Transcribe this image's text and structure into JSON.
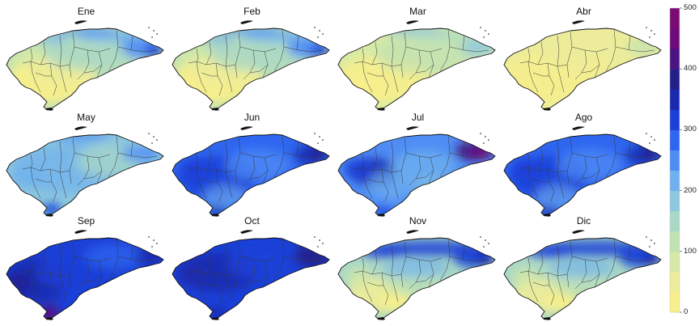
{
  "colorbar": {
    "ticks": [
      "500",
      "400",
      "300",
      "200",
      "100",
      "0"
    ],
    "range": [
      0,
      500
    ],
    "stops": [
      "#f7ef8c",
      "#ecec9a",
      "#d6e9a6",
      "#bfe1b3",
      "#a9d8c6",
      "#8cc8de",
      "#6fb1ee",
      "#4f8df5",
      "#2f66f0",
      "#1b40d8",
      "#1a2aae",
      "#23208a",
      "#4a1483",
      "#6e0a7a",
      "#7a0a74"
    ]
  },
  "months": [
    {
      "label": "Ene",
      "tone": "dry-ne-wet"
    },
    {
      "label": "Feb",
      "tone": "dry-ne-wet"
    },
    {
      "label": "Mar",
      "tone": "dry"
    },
    {
      "label": "Abr",
      "tone": "very-dry"
    },
    {
      "label": "May",
      "tone": "moderate"
    },
    {
      "label": "Jun",
      "tone": "wet"
    },
    {
      "label": "Jul",
      "tone": "wet-ne-peak"
    },
    {
      "label": "Ago",
      "tone": "wet"
    },
    {
      "label": "Sep",
      "tone": "very-wet-sw-peak"
    },
    {
      "label": "Oct",
      "tone": "very-wet"
    },
    {
      "label": "Nov",
      "tone": "north-wet-south-dry"
    },
    {
      "label": "Dic",
      "tone": "north-wet-south-dry"
    }
  ]
}
